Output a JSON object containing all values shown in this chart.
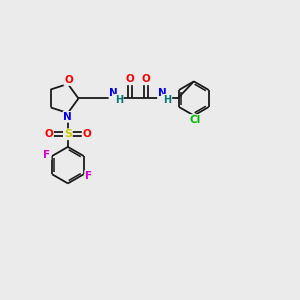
{
  "background_color": "#ebebeb",
  "bond_color": "#1a1a1a",
  "atom_colors": {
    "O": "#ff0000",
    "N": "#0000ee",
    "S": "#cccc00",
    "F": "#dd00dd",
    "Cl": "#00bb00",
    "H": "#007777",
    "C": "#1a1a1a"
  },
  "figsize": [
    3.0,
    3.0
  ],
  "dpi": 100
}
